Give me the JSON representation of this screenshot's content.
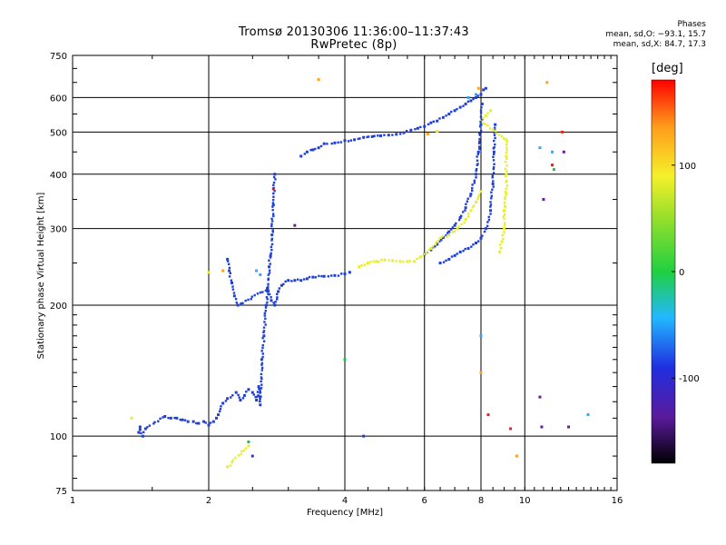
{
  "chart_data": {
    "type": "scatter",
    "title": "Tromsø 20130306 11:36:00–11:37:43",
    "subtitle": "RwPretec (8p)",
    "xlabel": "Frequency [MHz]",
    "ylabel": "Stationary phase Virtual Height [km]",
    "x_scale": "log",
    "y_scale": "log",
    "xlim": [
      1,
      16
    ],
    "ylim": [
      75,
      750
    ],
    "x_ticks": [
      1,
      2,
      4,
      6,
      8,
      10,
      16
    ],
    "y_ticks": [
      75,
      100,
      200,
      300,
      400,
      500,
      600,
      750
    ],
    "grid": true,
    "phase_stats": {
      "title": "Phases",
      "line_o": "mean, sd,O: −93.1, 15.7",
      "line_x": "mean, sd,X: 84.7, 17.3"
    },
    "colorbar": {
      "label": "[deg]",
      "range": [
        -180,
        180
      ],
      "ticks": [
        100,
        0,
        -100
      ]
    },
    "series": [
      {
        "color": "#1f3fd8",
        "points": [
          [
            1.4,
            102
          ],
          [
            1.41,
            105
          ],
          [
            1.43,
            100
          ],
          [
            1.45,
            104
          ],
          [
            1.6,
            111
          ],
          [
            1.65,
            110
          ],
          [
            1.7,
            110
          ],
          [
            1.75,
            109
          ],
          [
            1.8,
            108
          ],
          [
            1.85,
            108
          ],
          [
            1.9,
            107
          ],
          [
            1.95,
            108
          ],
          [
            2.0,
            106
          ],
          [
            2.05,
            108
          ],
          [
            2.08,
            110
          ],
          [
            2.1,
            112
          ],
          [
            2.15,
            119
          ],
          [
            2.2,
            122
          ],
          [
            2.3,
            126
          ],
          [
            2.35,
            121
          ],
          [
            2.4,
            124
          ],
          [
            2.45,
            128
          ],
          [
            2.5,
            126
          ],
          [
            2.55,
            121
          ],
          [
            2.58,
            130
          ],
          [
            2.6,
            118
          ],
          [
            2.62,
            150
          ],
          [
            2.65,
            170
          ],
          [
            2.68,
            200
          ],
          [
            2.7,
            215
          ],
          [
            2.72,
            245
          ],
          [
            2.74,
            260
          ],
          [
            2.76,
            290
          ],
          [
            2.78,
            340
          ],
          [
            2.8,
            400
          ],
          [
            2.2,
            255
          ],
          [
            2.22,
            240
          ],
          [
            2.25,
            225
          ],
          [
            2.28,
            210
          ],
          [
            2.32,
            200
          ],
          [
            2.7,
            218
          ],
          [
            2.75,
            205
          ],
          [
            2.8,
            200
          ],
          [
            2.85,
            215
          ],
          [
            2.9,
            222
          ],
          [
            3.0,
            228
          ],
          [
            3.1,
            228
          ],
          [
            3.2,
            228
          ],
          [
            3.3,
            230
          ],
          [
            3.4,
            232
          ],
          [
            3.6,
            233
          ],
          [
            3.8,
            234
          ],
          [
            4.0,
            236
          ],
          [
            4.1,
            238
          ],
          [
            3.2,
            440
          ],
          [
            3.3,
            450
          ],
          [
            3.4,
            455
          ],
          [
            3.5,
            460
          ],
          [
            3.6,
            470
          ],
          [
            3.8,
            472
          ],
          [
            4.0,
            478
          ],
          [
            4.2,
            480
          ],
          [
            4.4,
            486
          ],
          [
            4.6,
            488
          ],
          [
            4.8,
            490
          ],
          [
            5.0,
            492
          ],
          [
            5.2,
            494
          ],
          [
            5.4,
            498
          ],
          [
            5.6,
            505
          ],
          [
            5.8,
            510
          ],
          [
            6.0,
            515
          ],
          [
            6.2,
            525
          ],
          [
            6.4,
            530
          ],
          [
            6.6,
            540
          ],
          [
            6.8,
            550
          ],
          [
            7.0,
            560
          ],
          [
            7.2,
            570
          ],
          [
            7.4,
            580
          ],
          [
            7.6,
            590
          ],
          [
            7.8,
            600
          ],
          [
            8.0,
            610
          ],
          [
            8.1,
            625
          ],
          [
            8.2,
            630
          ],
          [
            6.0,
            262
          ],
          [
            6.2,
            268
          ],
          [
            6.4,
            276
          ],
          [
            6.6,
            286
          ],
          [
            6.8,
            295
          ],
          [
            7.0,
            305
          ],
          [
            7.2,
            318
          ],
          [
            7.4,
            335
          ],
          [
            7.6,
            360
          ],
          [
            7.8,
            400
          ],
          [
            7.9,
            450
          ],
          [
            8.0,
            520
          ],
          [
            8.05,
            580
          ],
          [
            6.5,
            250
          ],
          [
            6.8,
            255
          ],
          [
            7.0,
            260
          ],
          [
            7.2,
            265
          ],
          [
            7.5,
            270
          ],
          [
            7.8,
            278
          ],
          [
            8.0,
            285
          ],
          [
            8.2,
            300
          ],
          [
            8.4,
            330
          ],
          [
            8.5,
            380
          ],
          [
            8.55,
            450
          ],
          [
            8.6,
            520
          ],
          [
            2.5,
            90
          ],
          [
            4.4,
            100
          ]
        ]
      },
      {
        "color": "#e6ef2a",
        "points": [
          [
            4.3,
            245
          ],
          [
            4.5,
            250
          ],
          [
            4.7,
            252
          ],
          [
            4.9,
            254
          ],
          [
            5.1,
            253
          ],
          [
            5.3,
            252
          ],
          [
            5.5,
            252
          ],
          [
            5.7,
            252
          ],
          [
            6.2,
            270
          ],
          [
            6.5,
            285
          ],
          [
            6.8,
            290
          ],
          [
            7.1,
            300
          ],
          [
            7.4,
            315
          ],
          [
            7.6,
            330
          ],
          [
            7.8,
            345
          ],
          [
            8.0,
            365
          ],
          [
            8.8,
            265
          ],
          [
            8.9,
            280
          ],
          [
            9.0,
            300
          ],
          [
            9.0,
            330
          ],
          [
            9.1,
            360
          ],
          [
            9.1,
            400
          ],
          [
            9.1,
            440
          ],
          [
            9.1,
            480
          ],
          [
            8.0,
            530
          ],
          [
            8.2,
            545
          ],
          [
            8.4,
            560
          ],
          [
            2.0,
            238
          ],
          [
            1.35,
            110
          ],
          [
            2.2,
            85
          ],
          [
            2.45,
            95
          ],
          [
            6.4,
            502
          ]
        ]
      },
      {
        "color": "#2fa6ff",
        "points": [
          [
            2.55,
            240
          ],
          [
            2.6,
            235
          ],
          [
            7.5,
            600
          ],
          [
            7.8,
            610
          ],
          [
            10.8,
            460
          ],
          [
            11.5,
            450
          ],
          [
            13.8,
            112
          ],
          [
            8.0,
            170
          ]
        ]
      },
      {
        "color": "#ffa020",
        "points": [
          [
            3.5,
            660
          ],
          [
            7.9,
            630
          ],
          [
            8.0,
            140
          ],
          [
            9.6,
            90
          ],
          [
            11.2,
            650
          ],
          [
            2.15,
            240
          ],
          [
            6.1,
            495
          ]
        ]
      },
      {
        "color": "#e8241a",
        "points": [
          [
            9.3,
            104
          ],
          [
            12.1,
            500
          ],
          [
            11.5,
            420
          ],
          [
            2.78,
            370
          ],
          [
            8.3,
            112
          ]
        ]
      },
      {
        "color": "#22c040",
        "points": [
          [
            4.0,
            150
          ],
          [
            11.6,
            410
          ],
          [
            2.45,
            97
          ]
        ]
      },
      {
        "color": "#6a1aa0",
        "points": [
          [
            10.8,
            123
          ],
          [
            11.0,
            350
          ],
          [
            10.9,
            105
          ],
          [
            12.5,
            105
          ],
          [
            3.1,
            305
          ],
          [
            12.2,
            450
          ]
        ]
      }
    ]
  }
}
